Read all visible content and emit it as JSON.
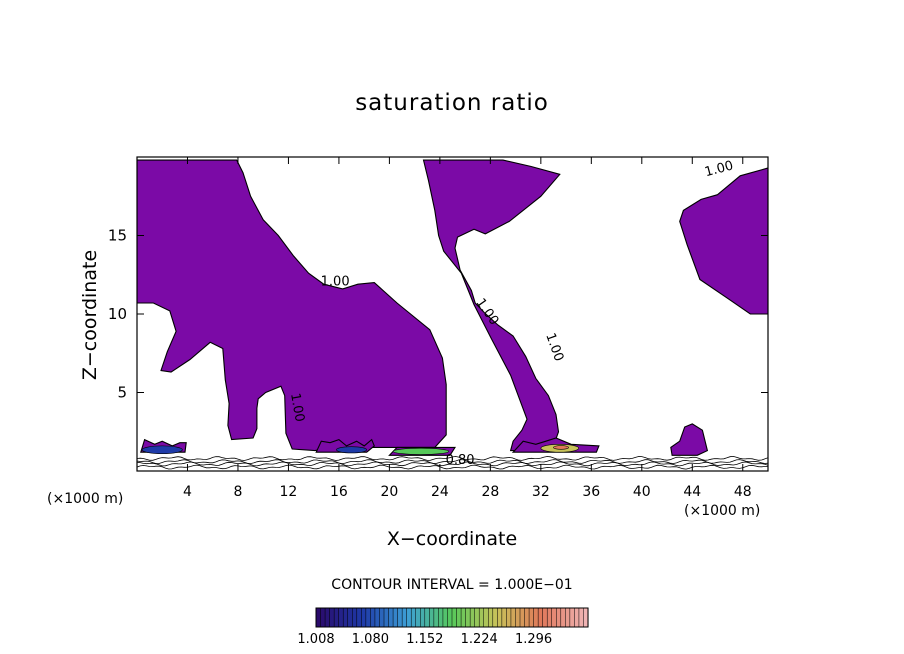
{
  "chart_data": {
    "type": "contour",
    "title": "saturation ratio",
    "xlabel": "X−coordinate",
    "ylabel": "Z−coordinate",
    "xunit_left": "(×1000 m)",
    "xunit_right": "(×1000 m)",
    "xlim": [
      0,
      50
    ],
    "ylim": [
      0,
      20
    ],
    "xticks": [
      4,
      8,
      12,
      16,
      20,
      24,
      28,
      32,
      36,
      40,
      44,
      48
    ],
    "yticks": [
      5,
      10,
      15
    ],
    "contour_labels": [
      {
        "text": "1.00",
        "x": 15.7,
        "y": 11.8,
        "angle": 0
      },
      {
        "text": "1.00",
        "x": 12.4,
        "y": 4.0,
        "angle": 80
      },
      {
        "text": "1.00",
        "x": 27.5,
        "y": 10.0,
        "angle": 55
      },
      {
        "text": "1.00",
        "x": 32.8,
        "y": 7.8,
        "angle": 70
      },
      {
        "text": "1.00",
        "x": 46.2,
        "y": 19.0,
        "angle": -15
      },
      {
        "text": "0.80",
        "x": 25.6,
        "y": 0.45,
        "angle": 0
      }
    ],
    "saturated_regions": [
      [
        [
          0,
          19.8
        ],
        [
          7.9,
          19.8
        ],
        [
          8.4,
          19.0
        ],
        [
          9.0,
          17.5
        ],
        [
          10.0,
          16.0
        ],
        [
          11.2,
          15.0
        ],
        [
          12.4,
          13.7
        ],
        [
          13.6,
          12.6
        ],
        [
          14.8,
          11.9
        ],
        [
          16.3,
          11.6
        ],
        [
          17.5,
          11.9
        ],
        [
          18.8,
          12.0
        ],
        [
          20.6,
          10.7
        ],
        [
          23.2,
          9.0
        ],
        [
          24.2,
          7.2
        ],
        [
          24.5,
          5.5
        ],
        [
          24.5,
          3.5
        ],
        [
          24.5,
          2.3
        ],
        [
          23.6,
          1.5
        ],
        [
          15.6,
          1.5
        ],
        [
          14.1,
          1.3
        ],
        [
          12.3,
          1.4
        ],
        [
          11.8,
          2.4
        ],
        [
          11.7,
          4.8
        ],
        [
          11.4,
          5.4
        ],
        [
          10.2,
          5.0
        ],
        [
          9.6,
          4.6
        ],
        [
          9.5,
          4.0
        ],
        [
          9.5,
          2.7
        ],
        [
          9.2,
          2.1
        ],
        [
          7.5,
          2.0
        ],
        [
          7.2,
          2.9
        ],
        [
          7.3,
          4.3
        ],
        [
          7.0,
          5.8
        ],
        [
          6.8,
          7.8
        ],
        [
          5.8,
          8.2
        ],
        [
          4.2,
          7.1
        ],
        [
          2.7,
          6.3
        ],
        [
          1.9,
          6.4
        ],
        [
          2.4,
          7.6
        ],
        [
          3.1,
          8.9
        ],
        [
          2.6,
          10.2
        ],
        [
          1.3,
          10.7
        ],
        [
          0,
          10.7
        ]
      ],
      [
        [
          22.7,
          19.8
        ],
        [
          29.0,
          19.8
        ],
        [
          31.2,
          19.4
        ],
        [
          33.5,
          18.9
        ],
        [
          32.0,
          17.5
        ],
        [
          29.5,
          15.9
        ],
        [
          27.6,
          15.1
        ],
        [
          26.7,
          15.4
        ],
        [
          25.4,
          14.9
        ],
        [
          25.2,
          14.2
        ],
        [
          25.6,
          12.8
        ],
        [
          26.5,
          11.5
        ],
        [
          26.8,
          10.7
        ],
        [
          27.5,
          10.1
        ],
        [
          28.6,
          9.3
        ],
        [
          29.8,
          8.6
        ],
        [
          30.8,
          7.3
        ],
        [
          31.6,
          5.9
        ],
        [
          32.6,
          4.8
        ],
        [
          33.2,
          3.6
        ],
        [
          33.4,
          2.5
        ],
        [
          33.0,
          1.6
        ],
        [
          31.0,
          1.3
        ],
        [
          29.6,
          1.3
        ],
        [
          29.8,
          1.9
        ],
        [
          30.5,
          2.6
        ],
        [
          30.9,
          3.3
        ],
        [
          29.6,
          6.1
        ],
        [
          28.1,
          8.4
        ],
        [
          26.7,
          10.6
        ],
        [
          25.7,
          12.6
        ],
        [
          24.3,
          14.0
        ],
        [
          23.9,
          15.0
        ],
        [
          23.6,
          16.6
        ],
        [
          23.1,
          18.5
        ]
      ],
      [
        [
          46.0,
          17.6
        ],
        [
          47.8,
          18.8
        ],
        [
          50,
          19.3
        ],
        [
          50,
          10.0
        ],
        [
          48.6,
          10.0
        ],
        [
          46.8,
          11.0
        ],
        [
          44.6,
          12.2
        ],
        [
          43.6,
          14.4
        ],
        [
          43.0,
          15.9
        ],
        [
          43.3,
          16.6
        ],
        [
          44.7,
          17.3
        ]
      ],
      [
        [
          0.3,
          1.2
        ],
        [
          3.8,
          1.2
        ],
        [
          3.9,
          1.8
        ],
        [
          3.4,
          1.8
        ],
        [
          2.8,
          1.6
        ],
        [
          2.0,
          1.9
        ],
        [
          1.4,
          1.7
        ],
        [
          0.6,
          2.0
        ]
      ],
      [
        [
          14.2,
          1.2
        ],
        [
          18.2,
          1.2
        ],
        [
          18.8,
          1.6
        ],
        [
          18.6,
          2.0
        ],
        [
          18.0,
          1.6
        ],
        [
          17.4,
          1.9
        ],
        [
          16.6,
          1.6
        ],
        [
          16.0,
          2.0
        ],
        [
          15.3,
          1.8
        ],
        [
          14.6,
          1.9
        ]
      ],
      [
        [
          20.0,
          1.0
        ],
        [
          24.8,
          1.0
        ],
        [
          25.2,
          1.5
        ],
        [
          20.6,
          1.5
        ]
      ],
      [
        [
          29.8,
          1.2
        ],
        [
          36.4,
          1.2
        ],
        [
          36.6,
          1.6
        ],
        [
          34.4,
          1.7
        ],
        [
          33.2,
          2.1
        ],
        [
          32.4,
          1.9
        ],
        [
          31.6,
          1.7
        ],
        [
          30.6,
          1.9
        ]
      ],
      [
        [
          42.4,
          1.0
        ],
        [
          44.4,
          1.0
        ],
        [
          45.2,
          1.3
        ],
        [
          44.8,
          2.6
        ],
        [
          44.0,
          3.0
        ],
        [
          43.4,
          2.8
        ],
        [
          43.0,
          1.9
        ],
        [
          42.3,
          1.5
        ]
      ]
    ],
    "high_cores": [
      {
        "x": 2.0,
        "y": 1.35,
        "rx": 1.6,
        "ry": 0.25,
        "value": 1.08
      },
      {
        "x": 17.0,
        "y": 1.35,
        "rx": 1.2,
        "ry": 0.2,
        "value": 1.08
      },
      {
        "x": 22.5,
        "y": 1.25,
        "rx": 2.2,
        "ry": 0.2,
        "value": 1.15
      },
      {
        "x": 33.5,
        "y": 1.45,
        "rx": 1.5,
        "ry": 0.25,
        "value": 1.22
      },
      {
        "x": 33.6,
        "y": 1.5,
        "rx": 0.6,
        "ry": 0.12,
        "value": 1.29
      }
    ],
    "contour_interval_text": "CONTOUR INTERVAL = 1.000E−01",
    "colorbar": {
      "min": 1.008,
      "max": 1.332,
      "tick_labels": [
        "1.008",
        "1.080",
        "1.152",
        "1.224",
        "1.296"
      ],
      "colors": [
        "#2a0a6b",
        "#1e3aa8",
        "#3d9fd6",
        "#57c95a",
        "#c8c35a",
        "#e0785a",
        "#f0b4b4"
      ]
    },
    "fill_color": "#7b0aa6"
  }
}
